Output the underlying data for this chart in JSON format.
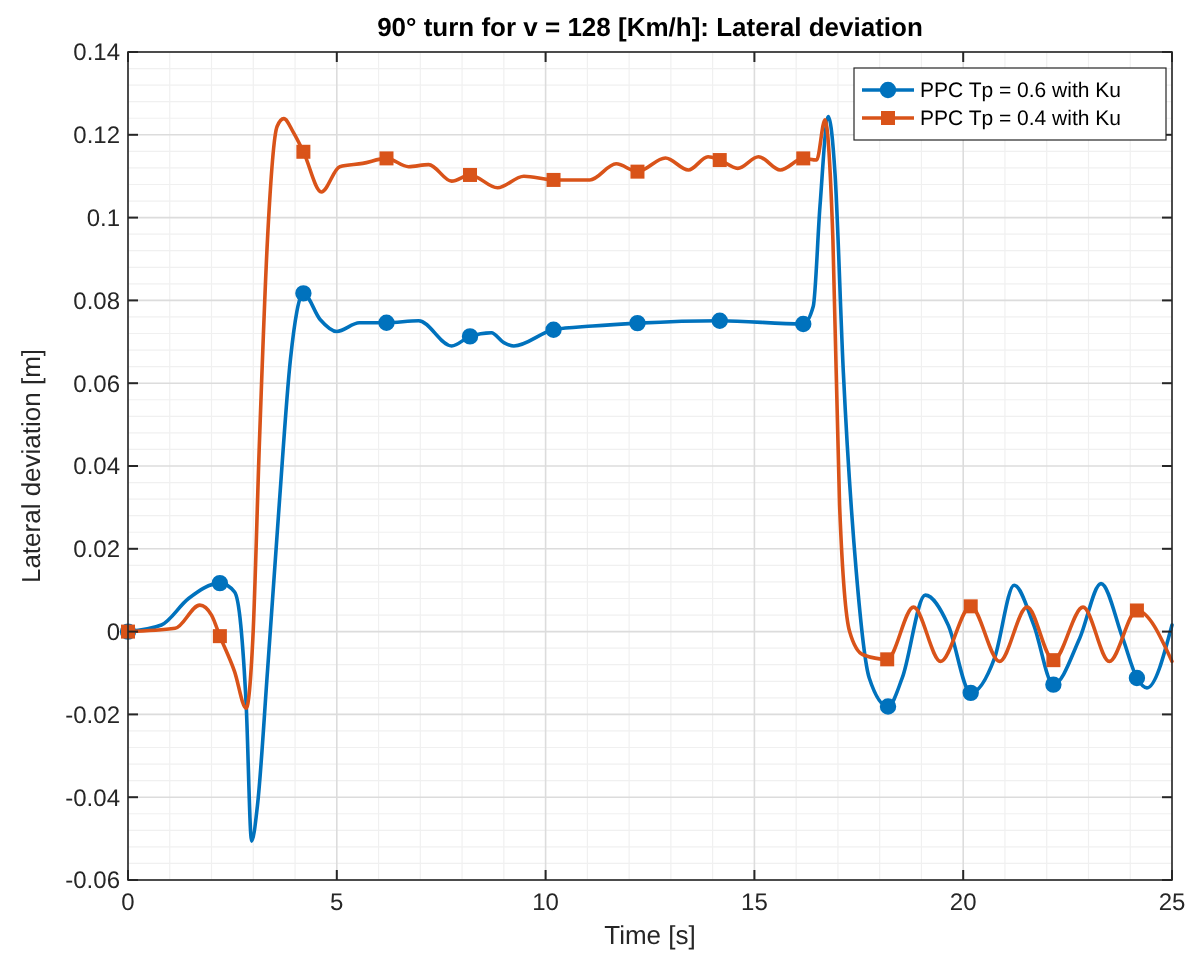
{
  "chart_data": {
    "type": "line",
    "title": "90° turn for v = 128 [Km/h]: Lateral deviation",
    "xlabel": "Time [s]",
    "ylabel": "Lateral deviation [m]",
    "xlim": [
      0,
      25
    ],
    "xticks": [
      0,
      5,
      10,
      15,
      20,
      25
    ],
    "ylim": [
      -0.06,
      0.14
    ],
    "yticks": [
      -0.06,
      -0.04,
      -0.02,
      0,
      0.02,
      0.04,
      0.06,
      0.08,
      0.1,
      0.12,
      0.14
    ],
    "grid": true,
    "legend": "top right",
    "line_style": "solid",
    "series": [
      {
        "name": "PPC Tp = 0.6 with Ku",
        "color": "#0072bd",
        "x": [
          0,
          0.8,
          1.45,
          2.2,
          2.55,
          2.7,
          2.83,
          2.96,
          3.1,
          3.34,
          3.62,
          3.89,
          4.2,
          4.6,
          5.0,
          5.54,
          6.19,
          6.96,
          7.75,
          8.19,
          8.7,
          9.0,
          9.24,
          10.19,
          11.13,
          12.2,
          14.17,
          16.17,
          16.41,
          16.57,
          16.77,
          16.93,
          17.13,
          17.44,
          17.75,
          18.2,
          18.54,
          19.09,
          19.64,
          20.18,
          20.75,
          21.22,
          21.69,
          22.16,
          22.79,
          23.3,
          23.82,
          24.16,
          24.4,
          25.0
        ],
        "values": [
          0,
          0.0016,
          0.008,
          0.0117,
          0.0096,
          0.0016,
          -0.0177,
          -0.0506,
          -0.042,
          -0.0096,
          0.0305,
          0.0658,
          0.0817,
          0.0754,
          0.0725,
          0.0746,
          0.0746,
          0.0751,
          0.069,
          0.0713,
          0.0722,
          0.0698,
          0.069,
          0.0729,
          0.0738,
          0.0745,
          0.0751,
          0.0743,
          0.0786,
          0.1027,
          0.1244,
          0.1107,
          0.0626,
          0.0144,
          -0.0112,
          -0.0181,
          -0.0112,
          0.0088,
          0.0016,
          -0.0148,
          -0.0064,
          0.0112,
          0.0016,
          -0.0128,
          -0.0016,
          0.0116,
          -0.0016,
          -0.0112,
          -0.0136,
          0.0016
        ]
      },
      {
        "color": "#0072bd",
        "type": "scatter",
        "marker": "circle",
        "x": [
          0,
          2.2,
          4.2,
          6.19,
          8.19,
          10.19,
          12.2,
          14.17,
          16.17,
          18.2,
          20.18,
          22.16,
          24.16
        ],
        "values": [
          0,
          0.0117,
          0.0817,
          0.0746,
          0.0713,
          0.0729,
          0.0745,
          0.0751,
          0.0743,
          -0.0181,
          -0.0148,
          -0.0128,
          -0.0112
        ]
      },
      {
        "name": "PPC Tp = 0.4 with Ku",
        "color": "#d95319",
        "x": [
          0,
          1.13,
          1.72,
          2.0,
          2.2,
          2.55,
          2.83,
          2.99,
          3.15,
          3.34,
          3.57,
          3.73,
          3.97,
          4.2,
          4.63,
          5.07,
          5.62,
          6.19,
          6.72,
          7.2,
          7.75,
          8.19,
          8.85,
          9.48,
          10.19,
          11.06,
          11.69,
          12.2,
          12.87,
          13.42,
          13.89,
          14.17,
          14.6,
          15.1,
          15.62,
          16.17,
          16.49,
          16.69,
          16.88,
          17.04,
          17.28,
          17.6,
          18.18,
          18.81,
          19.46,
          20.18,
          20.87,
          21.53,
          22.16,
          22.87,
          23.5,
          24.16,
          25.0
        ],
        "values": [
          0,
          0.0008,
          0.0064,
          0.004,
          -0.0011,
          -0.0096,
          -0.0185,
          -0.0016,
          0.0465,
          0.0947,
          0.122,
          0.1239,
          0.1204,
          0.1159,
          0.1062,
          0.1123,
          0.1131,
          0.1143,
          0.1123,
          0.1128,
          0.1088,
          0.1103,
          0.1072,
          0.11,
          0.1091,
          0.1091,
          0.113,
          0.1111,
          0.1144,
          0.1115,
          0.1147,
          0.1139,
          0.1119,
          0.1147,
          0.1115,
          0.1143,
          0.1139,
          0.1236,
          0.0947,
          0.0305,
          0,
          -0.0056,
          -0.0067,
          0.0059,
          -0.0072,
          0.0061,
          -0.0072,
          0.0059,
          -0.0069,
          0.0059,
          -0.0072,
          0.0051,
          -0.0072
        ]
      },
      {
        "color": "#d95319",
        "type": "scatter",
        "marker": "square",
        "x": [
          0,
          2.2,
          4.2,
          6.19,
          8.19,
          10.19,
          12.2,
          14.17,
          16.17,
          18.18,
          20.18,
          22.16,
          24.16
        ],
        "values": [
          0,
          -0.0011,
          0.1159,
          0.1143,
          0.1103,
          0.1091,
          0.1111,
          0.1139,
          0.1143,
          -0.0067,
          0.0061,
          -0.0069,
          0.0051
        ]
      }
    ]
  }
}
